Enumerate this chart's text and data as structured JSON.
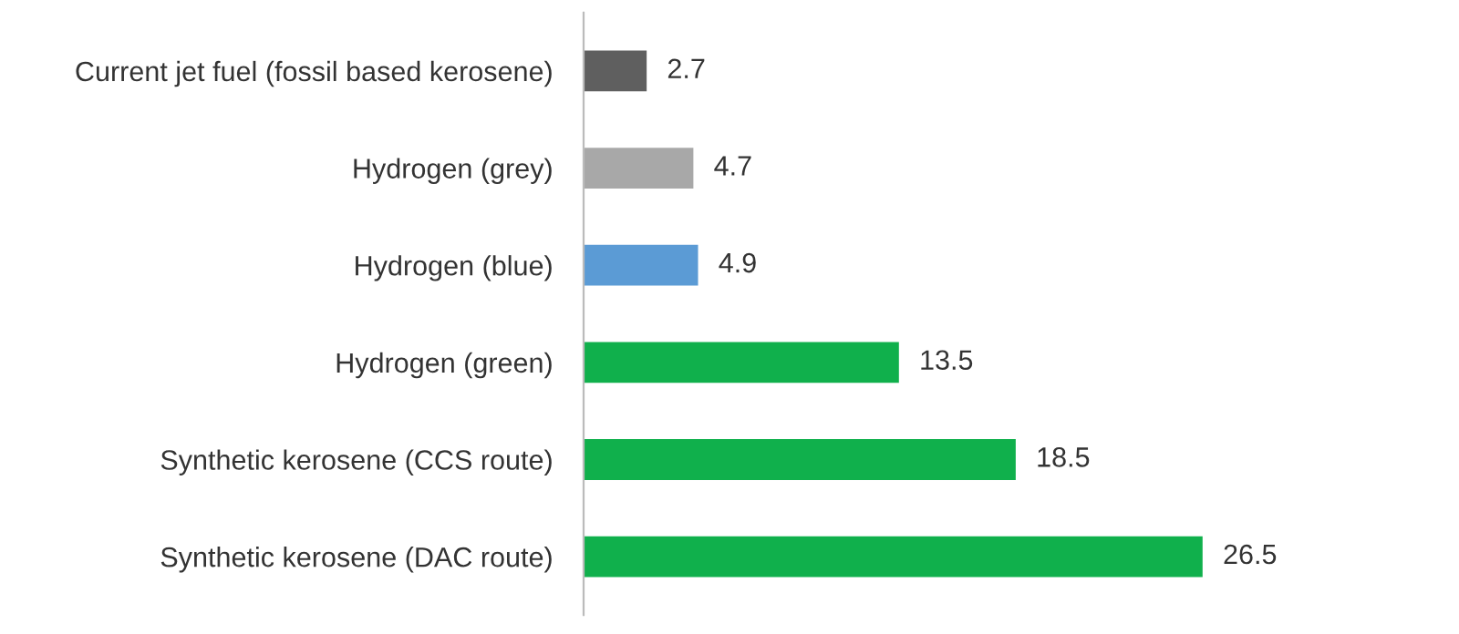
{
  "chart_data": {
    "type": "bar",
    "orientation": "horizontal",
    "data_labels": true,
    "grid": false,
    "legend": false,
    "categories": [
      "Current jet fuel (fossil based kerosene)",
      "Hydrogen (grey)",
      "Hydrogen (blue)",
      "Hydrogen (green)",
      "Synthetic kerosene (CCS route)",
      "Synthetic kerosene (DAC route)"
    ],
    "values": [
      2.7,
      4.7,
      4.9,
      13.5,
      18.5,
      26.5
    ],
    "colors": [
      "#5f5f5f",
      "#a8a8a8",
      "#5b9bd5",
      "#10b04c",
      "#10b04c",
      "#10b04c"
    ]
  }
}
